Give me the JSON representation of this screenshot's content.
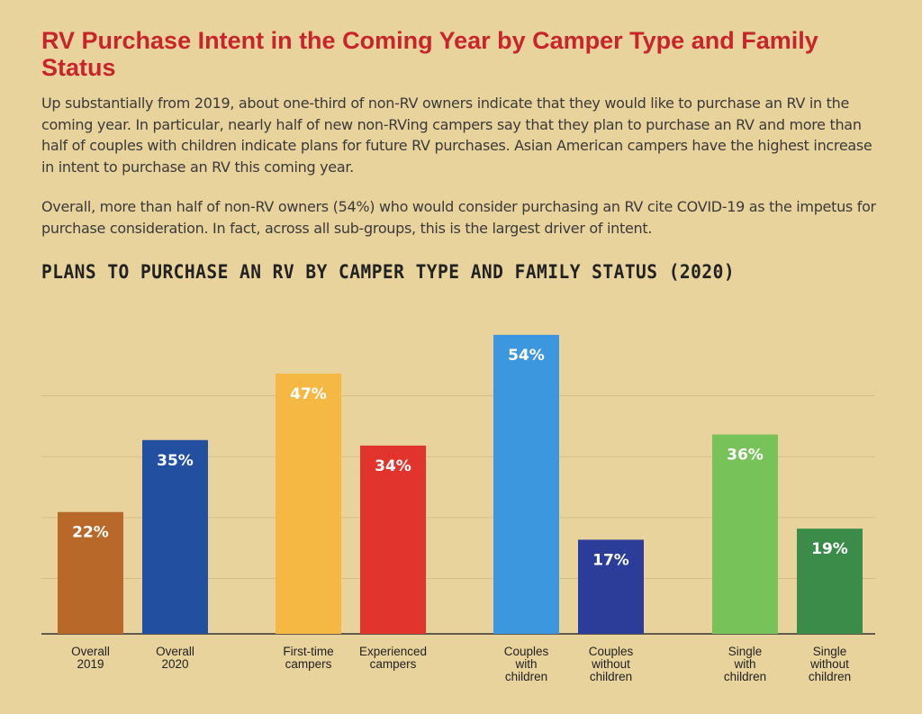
{
  "header": {
    "title": "RV Purchase Intent in the Coming Year by Camper Type and Family Status"
  },
  "body": {
    "paragraph1": "Up substantially from 2019, about one-third of non-RV owners indicate that they would like to purchase an RV in the coming year. In particular, nearly half of new non-RVing campers say that they plan to purchase an RV and more than half of couples with children indicate plans for future RV purchases. Asian American campers have the highest increase in intent to purchase an RV this coming year.",
    "paragraph2": "Overall, more than half of non-RV owners (54%) who would consider purchasing an RV cite COVID-19 as the impetus for purchase consideration. In fact, across all sub-groups, this is the largest driver of intent."
  },
  "chart_data": {
    "type": "bar",
    "title": "PLANS TO PURCHASE AN RV BY CAMPER TYPE AND FAMILY STATUS (2020)",
    "xlabel": "",
    "ylabel": "",
    "ylim": [
      0,
      60
    ],
    "grid": true,
    "legend": "none",
    "categories": [
      [
        "Overall",
        "2019"
      ],
      [
        "Overall",
        "2020"
      ],
      [
        "First-time",
        "campers"
      ],
      [
        "Experienced",
        "campers"
      ],
      [
        "Couples",
        "with",
        "children"
      ],
      [
        "Couples",
        "without",
        "children"
      ],
      [
        "Single",
        "with",
        "children"
      ],
      [
        "Single",
        "without",
        "children"
      ]
    ],
    "values": [
      22,
      35,
      47,
      34,
      54,
      17,
      36,
      19
    ],
    "value_labels": [
      "22%",
      "35%",
      "47%",
      "34%",
      "54%",
      "17%",
      "36%",
      "19%"
    ],
    "colors": [
      "#b8692a",
      "#234fa1",
      "#f5b843",
      "#e0342d",
      "#3d97de",
      "#2c3d99",
      "#78c25a",
      "#3a8c48"
    ]
  }
}
